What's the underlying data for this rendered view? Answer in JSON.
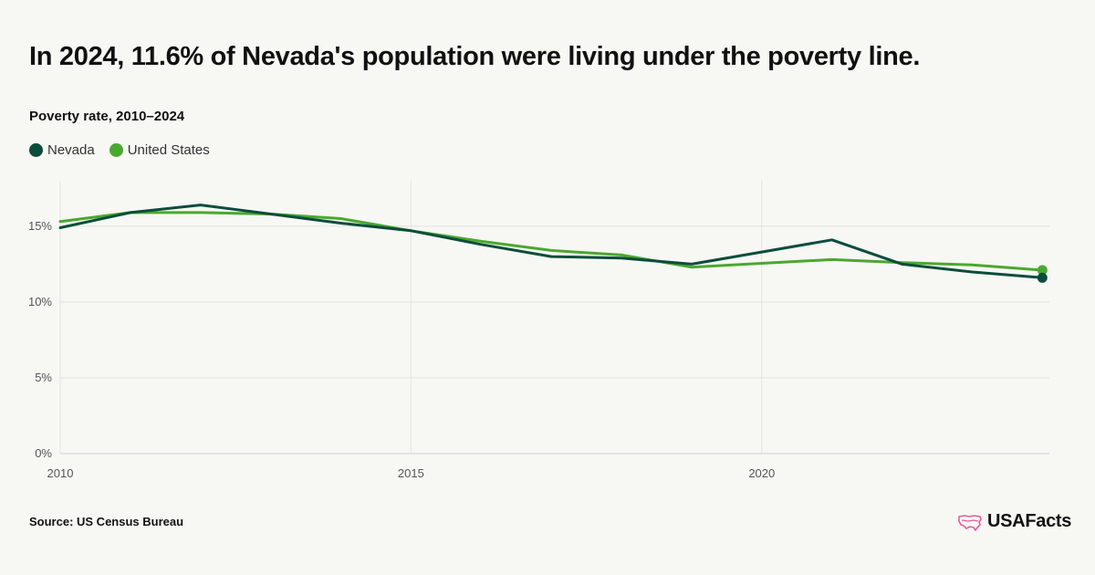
{
  "header": {
    "title": "In 2024, 11.6% of Nevada's population were living under the poverty line.",
    "subtitle": "Poverty rate, 2010–2024"
  },
  "legend": [
    {
      "label": "Nevada",
      "color": "#0b4d3c"
    },
    {
      "label": "United States",
      "color": "#4aa82e"
    }
  ],
  "footer": {
    "source": "Source: US Census Bureau",
    "logo_text": "USAFacts",
    "logo_icon": "us-map-icon",
    "logo_icon_color": "#e0609a"
  },
  "chart_data": {
    "type": "line",
    "title": "In 2024, 11.6% of Nevada's population were living under the poverty line.",
    "subtitle": "Poverty rate, 2010–2024",
    "xlabel": "",
    "ylabel": "",
    "x": [
      2010,
      2011,
      2012,
      2013,
      2014,
      2015,
      2016,
      2017,
      2018,
      2019,
      2020,
      2021,
      2022,
      2023,
      2024
    ],
    "xlim": [
      2010,
      2024.1
    ],
    "ylim": [
      0,
      18
    ],
    "x_ticks": [
      2010,
      2015,
      2020
    ],
    "y_ticks": [
      0,
      5,
      10,
      15
    ],
    "y_tick_labels": [
      "0%",
      "5%",
      "10%",
      "15%"
    ],
    "grid": true,
    "legend_position": "top-left",
    "series": [
      {
        "name": "Nevada",
        "color": "#0b4d3c",
        "values": [
          14.9,
          15.9,
          16.4,
          15.8,
          15.2,
          14.7,
          13.8,
          13.0,
          12.9,
          12.5,
          13.3,
          14.1,
          12.5,
          11.98,
          11.6
        ]
      },
      {
        "name": "United States",
        "color": "#4aa82e",
        "values": [
          15.3,
          15.9,
          15.9,
          15.8,
          15.5,
          14.7,
          14.0,
          13.4,
          13.1,
          12.3,
          12.55,
          12.8,
          12.6,
          12.45,
          12.1
        ]
      }
    ]
  }
}
